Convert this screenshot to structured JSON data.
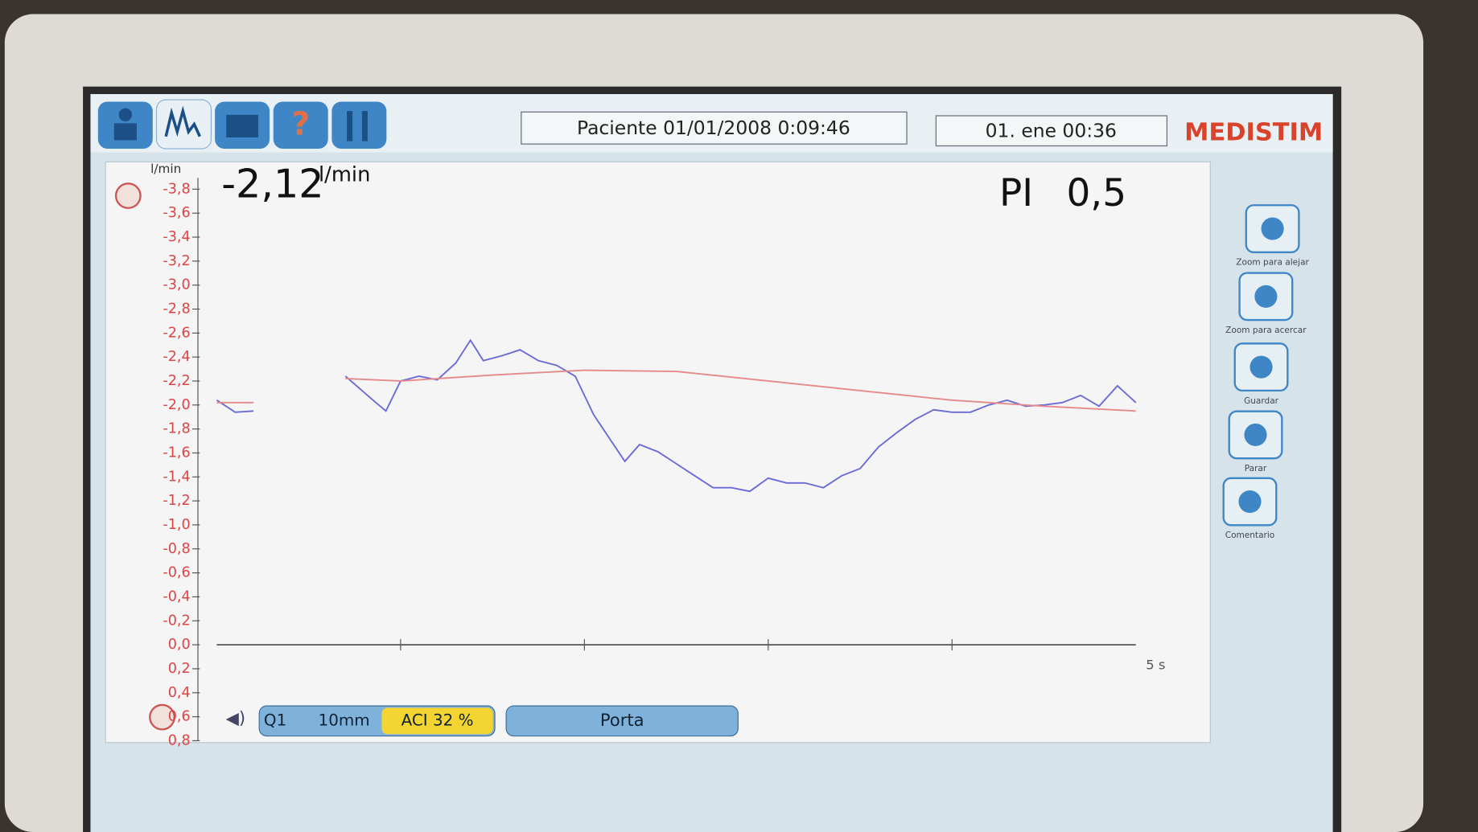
{
  "header": {
    "patient": "Paciente 01/01/2008 0:09:46",
    "clock": "01. ene 00:36",
    "brand": "MEDISTIM"
  },
  "side_buttons": [
    "Zoom para alejar",
    "Zoom para acercar",
    "Guardar",
    "Parar",
    "Comentario"
  ],
  "chart_data": {
    "type": "line",
    "y_unit": "l/min",
    "reading": "-2,12",
    "reading_unit": "l/min",
    "pi_label": "PI",
    "pi_value": "0,5",
    "x_label": "5 s",
    "xlim": [
      0,
      5
    ],
    "xticks": [
      1,
      2,
      3,
      4
    ],
    "ylim": [
      0.8,
      -3.8
    ],
    "yticks": [
      {
        "value": -3.8,
        "label": "-3,8"
      },
      {
        "value": -3.6,
        "label": "-3,6"
      },
      {
        "value": -3.4,
        "label": "-3,4"
      },
      {
        "value": -3.2,
        "label": "-3,2"
      },
      {
        "value": -3.0,
        "label": "-3,0"
      },
      {
        "value": -2.8,
        "label": "-2,8"
      },
      {
        "value": -2.6,
        "label": "-2,6"
      },
      {
        "value": -2.4,
        "label": "-2,4"
      },
      {
        "value": -2.2,
        "label": "-2,2"
      },
      {
        "value": -2.0,
        "label": "-2,0"
      },
      {
        "value": -1.8,
        "label": "-1,8"
      },
      {
        "value": -1.6,
        "label": "-1,6"
      },
      {
        "value": -1.4,
        "label": "-1,4"
      },
      {
        "value": -1.2,
        "label": "-1,2"
      },
      {
        "value": -1.0,
        "label": "-1,0"
      },
      {
        "value": -0.8,
        "label": "-0,8"
      },
      {
        "value": -0.6,
        "label": "-0,6"
      },
      {
        "value": -0.4,
        "label": "-0,4"
      },
      {
        "value": -0.2,
        "label": "-0,2"
      },
      {
        "value": 0,
        "label": "0,0"
      },
      {
        "value": 0.2,
        "label": "0,2"
      },
      {
        "value": 0.4,
        "label": "0,4"
      },
      {
        "value": 0.6,
        "label": "0,6"
      },
      {
        "value": 0.8,
        "label": "0,8"
      }
    ],
    "series": [
      {
        "color": "#6a6ad8",
        "x": [
          0,
          0.1,
          0.2,
          0.4,
          0.7,
          0.85,
          0.92,
          1.0,
          1.1,
          1.2,
          1.3,
          1.38,
          1.45,
          1.55,
          1.65,
          1.75,
          1.85,
          1.95,
          2.05,
          2.15,
          2.22,
          2.3,
          2.4,
          2.5,
          2.6,
          2.7,
          2.8,
          2.9,
          3.0,
          3.1,
          3.2,
          3.3,
          3.4,
          3.5,
          3.6,
          3.7,
          3.8,
          3.9,
          4.0,
          4.1,
          4.2,
          4.3,
          4.4,
          4.5,
          4.6,
          4.7,
          4.8,
          4.9,
          5.0
        ],
        "values": [
          -2.04,
          -1.94,
          -1.95,
          null,
          -2.24,
          -2.04,
          -1.95,
          -2.2,
          -2.24,
          -2.21,
          -2.35,
          -2.54,
          -2.37,
          -2.41,
          -2.46,
          -2.37,
          -2.33,
          -2.24,
          -1.92,
          -1.69,
          -1.53,
          -1.67,
          -1.61,
          -1.51,
          -1.41,
          -1.31,
          -1.31,
          -1.28,
          -1.39,
          -1.35,
          -1.35,
          -1.31,
          -1.41,
          -1.47,
          -1.65,
          -1.77,
          -1.88,
          -1.96,
          -1.94,
          -1.94,
          -2.0,
          -2.04,
          -1.99,
          -2.0,
          -2.02,
          -2.08,
          -1.99,
          -2.16,
          -2.02
        ]
      },
      {
        "color": "#e58a8a",
        "x": [
          0,
          0.1,
          0.2,
          0.4,
          0.7,
          1.0,
          1.5,
          2.0,
          2.5,
          3.0,
          3.5,
          4.0,
          4.5,
          5.0
        ],
        "values": [
          -2.02,
          -2.02,
          -2.02,
          null,
          -2.22,
          -2.2,
          -2.25,
          -2.29,
          -2.28,
          -2.2,
          -2.12,
          -2.04,
          -1.99,
          -1.95
        ]
      }
    ]
  },
  "bottom_bar": {
    "probe": "Q1",
    "size": "10mm",
    "aci": "ACI 32 %",
    "vessel": "Porta"
  }
}
